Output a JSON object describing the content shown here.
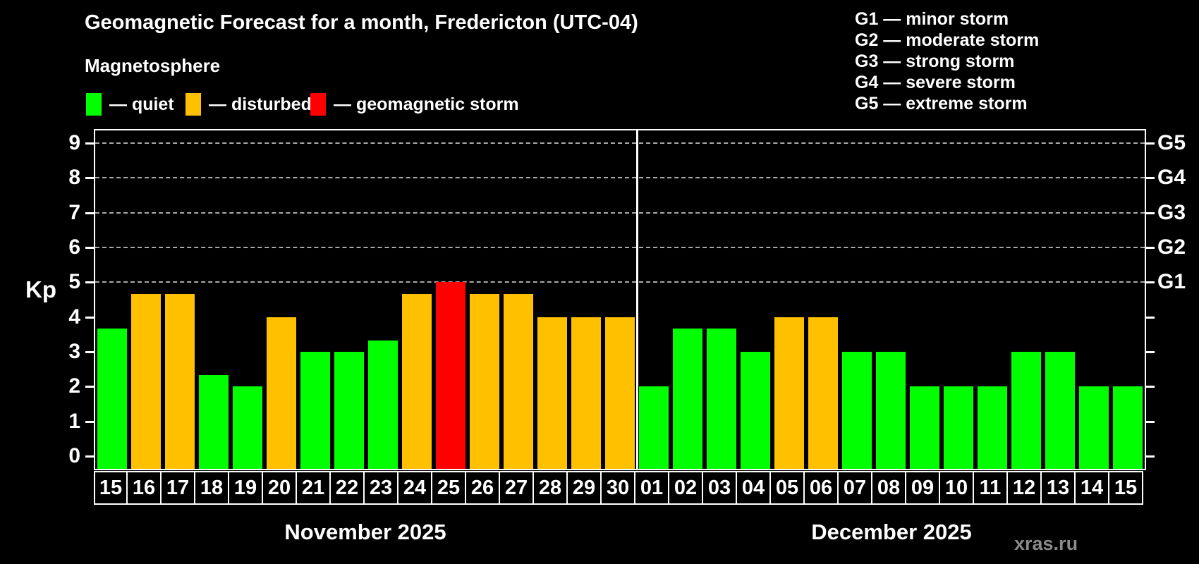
{
  "title": "Geomagnetic Forecast for a month, Fredericton (UTC-04)",
  "subtitle": "Magnetosphere",
  "legend": {
    "items": [
      {
        "key": "quiet",
        "label": "— quiet",
        "color": "#00ff00"
      },
      {
        "key": "disturbed",
        "label": "— disturbed",
        "color": "#ffc000"
      },
      {
        "key": "storm",
        "label": "— geomagnetic storm",
        "color": "#ff0000"
      }
    ]
  },
  "g_legend": {
    "items": [
      "G1 — minor storm",
      "G2 — moderate storm",
      "G3 — strong storm",
      "G4 — severe storm",
      "G5 — extreme storm"
    ]
  },
  "watermark": "xras.ru",
  "chart_data": {
    "type": "bar",
    "title": "Geomagnetic Forecast for a month, Fredericton (UTC-04)",
    "subtitle": "Magnetosphere",
    "ylabel": "Kp",
    "ylim": [
      0,
      9
    ],
    "y_ticks": [
      0,
      1,
      2,
      3,
      4,
      5,
      6,
      7,
      8,
      9
    ],
    "gridlines_at": [
      5,
      6,
      7,
      8,
      9
    ],
    "grid": "dashed-horizontal",
    "legend_position": "top-left",
    "g_levels": [
      {
        "kp": 5,
        "label": "G1"
      },
      {
        "kp": 6,
        "label": "G2"
      },
      {
        "kp": 7,
        "label": "G3"
      },
      {
        "kp": 8,
        "label": "G4"
      },
      {
        "kp": 9,
        "label": "G5"
      }
    ],
    "status_colors": {
      "quiet": "#00ff00",
      "disturbed": "#ffc000",
      "storm": "#ff0000"
    },
    "months": [
      {
        "label": "November 2025",
        "days": [
          "15",
          "16",
          "17",
          "18",
          "19",
          "20",
          "21",
          "22",
          "23",
          "24",
          "25",
          "26",
          "27",
          "28",
          "29",
          "30"
        ],
        "values": [
          3.67,
          4.67,
          4.67,
          2.33,
          2,
          4,
          3,
          3,
          3.33,
          4.67,
          5,
          4.67,
          4.67,
          4,
          4,
          4
        ],
        "statuses": [
          "quiet",
          "disturbed",
          "disturbed",
          "quiet",
          "quiet",
          "disturbed",
          "quiet",
          "quiet",
          "quiet",
          "disturbed",
          "storm",
          "disturbed",
          "disturbed",
          "disturbed",
          "disturbed",
          "disturbed"
        ]
      },
      {
        "label": "December 2025",
        "days": [
          "01",
          "02",
          "03",
          "04",
          "05",
          "06",
          "07",
          "08",
          "09",
          "10",
          "11",
          "12",
          "13",
          "14",
          "15"
        ],
        "values": [
          2,
          3.67,
          3.67,
          3,
          4,
          4,
          3,
          3,
          2,
          2,
          2,
          3,
          3,
          2,
          2
        ],
        "statuses": [
          "quiet",
          "quiet",
          "quiet",
          "quiet",
          "disturbed",
          "disturbed",
          "quiet",
          "quiet",
          "quiet",
          "quiet",
          "quiet",
          "quiet",
          "quiet",
          "quiet",
          "quiet"
        ]
      }
    ]
  }
}
